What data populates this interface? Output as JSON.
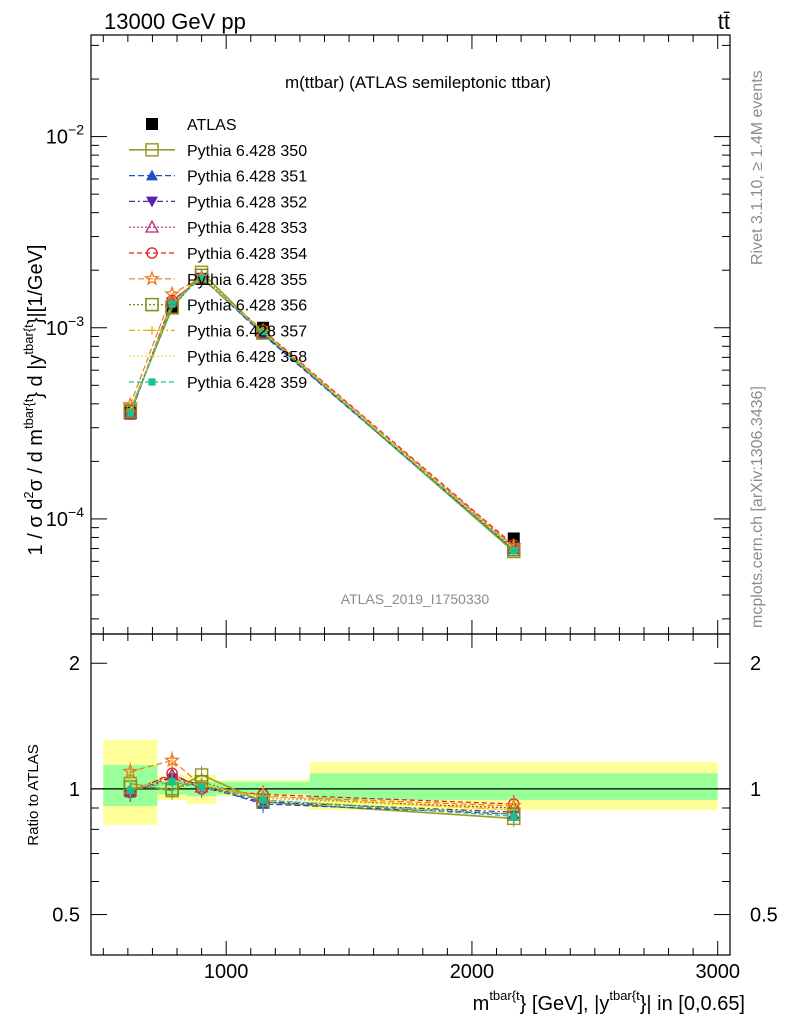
{
  "header": {
    "left": "13000 GeV pp",
    "right": "tt̄"
  },
  "side_labels": {
    "rivet": "Rivet 3.1.10, ≥ 1.4M events",
    "mcplots": "mcplots.cern.ch [arXiv:1306.3436]"
  },
  "watermark": "ATLAS_2019_I1750330",
  "chart_data": [
    {
      "type": "line",
      "title": "m(ttbar) (ATLAS semileptonic ttbar)",
      "ylabel": "1 / σ d²σ / d m^{tbar{t}} d |y^{tbar{t}}|[1/GeV]",
      "ylabel_parts": [
        "1 / σ d",
        "2",
        "σ / d m",
        "tbar{t",
        "} d |y",
        "tbar{t",
        "}|[1/GeV]"
      ],
      "yscale": "log",
      "xlim": [
        450,
        3050
      ],
      "ylim": [
        2.5e-05,
        0.034
      ],
      "ytick_labels": [
        {
          "value": 0.0001,
          "base": "10",
          "exp": "−4"
        },
        {
          "value": 0.001,
          "base": "10",
          "exp": "−3"
        },
        {
          "value": 0.01,
          "base": "10",
          "exp": "−2"
        }
      ],
      "legend_placement": "top-left",
      "bins": [
        [
          500,
          720
        ],
        [
          720,
          840
        ],
        [
          840,
          960
        ],
        [
          960,
          1340
        ],
        [
          1340,
          3000
        ]
      ],
      "x": [
        610,
        780,
        900,
        1150,
        2170
      ],
      "series": [
        {
          "name": "ATLAS",
          "color": "#000000",
          "marker": "square-filled",
          "dash": "none",
          "values": [
            0.00036,
            0.00128,
            0.0018,
            0.001,
            7.9e-05
          ]
        },
        {
          "name": "Pythia 6.428 350",
          "color": "#9a9a28",
          "marker": "square-open",
          "dash": "solid",
          "values": [
            0.00037,
            0.00127,
            0.00195,
            0.00094,
            6.75e-05
          ]
        },
        {
          "name": "Pythia 6.428 351",
          "color": "#1f4ec2",
          "marker": "triangle-up-filled",
          "dash": "6,3",
          "values": [
            0.00035,
            0.00137,
            0.00184,
            0.00092,
            6.9e-05
          ]
        },
        {
          "name": "Pythia 6.428 352",
          "color": "#5a22b0",
          "marker": "triangle-down-filled",
          "dash": "6,3,2,3",
          "values": [
            0.000353,
            0.00136,
            0.00183,
            0.00093,
            6.95e-05
          ]
        },
        {
          "name": "Pythia 6.428 353",
          "color": "#c2207a",
          "marker": "triangle-up-open",
          "dash": "2,2",
          "values": [
            0.000355,
            0.00138,
            0.00182,
            0.00095,
            7.1e-05
          ]
        },
        {
          "name": "Pythia 6.428 354",
          "color": "#dd1c2a",
          "marker": "circle-open",
          "dash": "5,3",
          "values": [
            0.000354,
            0.00139,
            0.00181,
            0.00097,
            7.3e-05
          ]
        },
        {
          "name": "Pythia 6.428 355",
          "color": "#f07a1a",
          "marker": "star-open",
          "dash": "6,3",
          "values": [
            0.000395,
            0.0015,
            0.00184,
            0.00096,
            7.2e-05
          ]
        },
        {
          "name": "Pythia 6.428 356",
          "color": "#7e8a1a",
          "marker": "square-open",
          "dash": "2,2",
          "values": [
            0.000365,
            0.00128,
            0.00188,
            0.00094,
            6.9e-05
          ]
        },
        {
          "name": "Pythia 6.428 357",
          "color": "#d9b512",
          "marker": "cross",
          "dash": "6,3,2,3",
          "values": [
            0.00036,
            0.00135,
            0.00183,
            0.00096,
            7.05e-05
          ]
        },
        {
          "name": "Pythia 6.428 358",
          "color": "#d6e01c",
          "marker": "none",
          "dash": "2,2",
          "values": [
            0.000362,
            0.00134,
            0.00184,
            0.00095,
            7e-05
          ]
        },
        {
          "name": "Pythia 6.428 359",
          "color": "#18c290",
          "marker": "square-small-filled",
          "dash": "5,3",
          "values": [
            0.000358,
            0.00133,
            0.00182,
            0.00094,
            6.8e-05
          ]
        }
      ]
    },
    {
      "type": "line",
      "ylabel": "Ratio to ATLAS",
      "xlabel": "m^{tbar{t}} [GeV], |y^{tbar{t}}| in [0,0.65]",
      "xlabel_parts": [
        "m",
        "tbar{t",
        "} [GeV], |y",
        "tbar{t",
        "}| in [0,0.65]"
      ],
      "xlim": [
        450,
        3050
      ],
      "ylim": [
        0.4,
        2.35
      ],
      "yscale": "log",
      "yticks": [
        0.5,
        1,
        2
      ],
      "ytick_labels": [
        "0.5",
        "1",
        "2"
      ],
      "xticks": [
        1000,
        2000,
        3000
      ],
      "xtick_labels": [
        "1000",
        "2000",
        "3000"
      ],
      "uncertainty_bands": {
        "green": [
          [
            0.91,
            1.14
          ],
          [
            0.97,
            1.04
          ],
          [
            0.96,
            1.04
          ],
          [
            0.97,
            1.04
          ],
          [
            0.94,
            1.09
          ]
        ],
        "yellow": [
          [
            0.82,
            1.31
          ],
          [
            0.94,
            1.08
          ],
          [
            0.92,
            1.08
          ],
          [
            0.96,
            1.05
          ],
          [
            0.89,
            1.16
          ]
        ]
      },
      "series": [
        {
          "name": "Pythia 6.428 350",
          "values": [
            1.03,
            0.99,
            1.08,
            0.93,
            0.85
          ]
        },
        {
          "name": "Pythia 6.428 351",
          "values": [
            0.98,
            1.07,
            1.02,
            0.92,
            0.87
          ]
        },
        {
          "name": "Pythia 6.428 352",
          "values": [
            0.98,
            1.06,
            1.01,
            0.93,
            0.88
          ]
        },
        {
          "name": "Pythia 6.428 353",
          "values": [
            0.99,
            1.08,
            1.01,
            0.95,
            0.9
          ]
        },
        {
          "name": "Pythia 6.428 354",
          "values": [
            0.98,
            1.09,
            1.0,
            0.97,
            0.92
          ]
        },
        {
          "name": "Pythia 6.428 355",
          "values": [
            1.1,
            1.17,
            1.02,
            0.96,
            0.91
          ]
        },
        {
          "name": "Pythia 6.428 356",
          "values": [
            1.01,
            1.0,
            1.04,
            0.94,
            0.87
          ]
        },
        {
          "name": "Pythia 6.428 357",
          "values": [
            1.0,
            1.05,
            1.02,
            0.96,
            0.89
          ]
        },
        {
          "name": "Pythia 6.428 358",
          "values": [
            1.01,
            1.05,
            1.02,
            0.95,
            0.89
          ]
        },
        {
          "name": "Pythia 6.428 359",
          "values": [
            0.99,
            1.04,
            1.01,
            0.94,
            0.86
          ]
        }
      ]
    }
  ]
}
